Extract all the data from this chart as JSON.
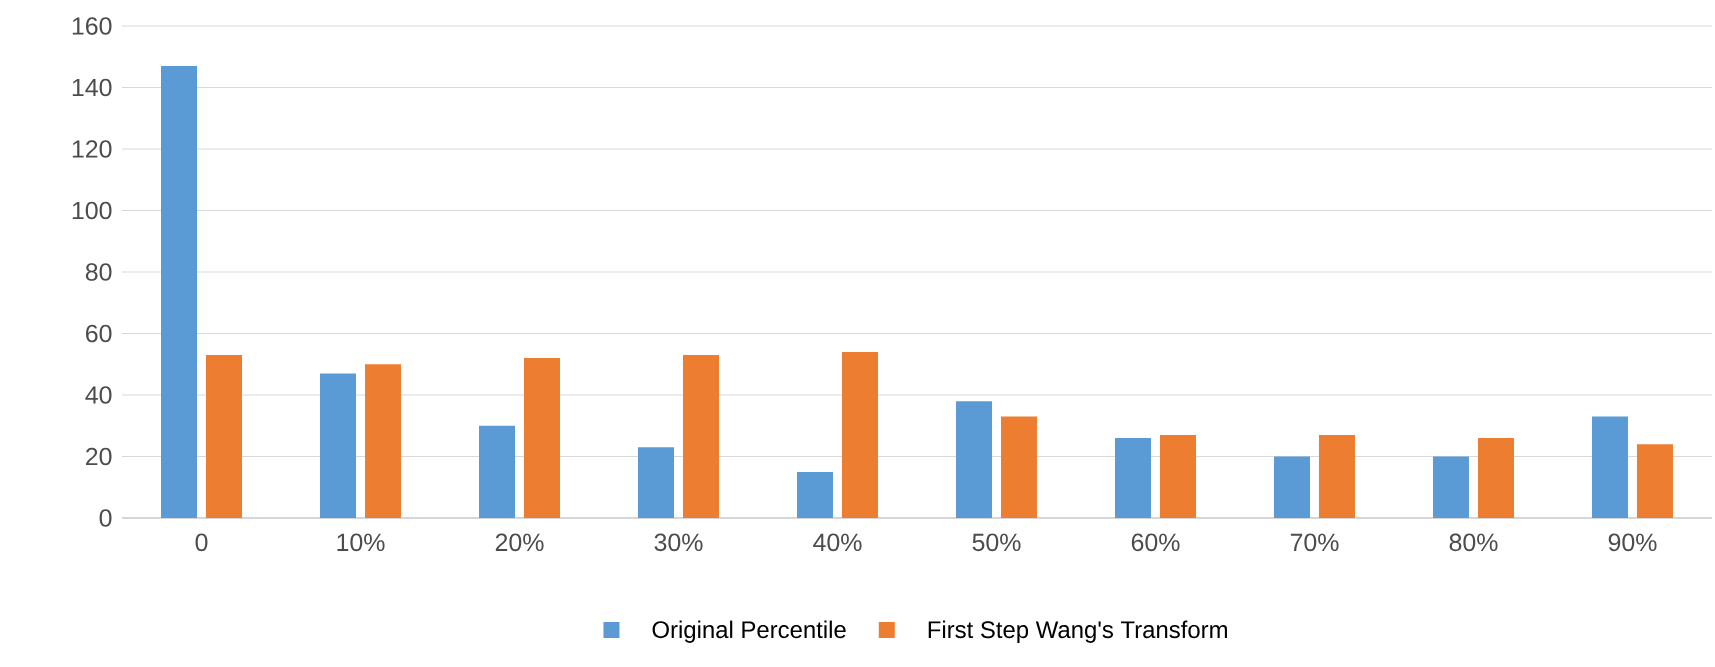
{
  "chart_data": {
    "type": "bar",
    "categories": [
      "0",
      "10%",
      "20%",
      "30%",
      "40%",
      "50%",
      "60%",
      "70%",
      "80%",
      "90%"
    ],
    "series": [
      {
        "name": "Original Percentile",
        "color": "#5b9bd5",
        "values": [
          147,
          47,
          30,
          23,
          15,
          38,
          26,
          20,
          20,
          33
        ]
      },
      {
        "name": "First Step Wang's Transform",
        "color": "#ed7d31",
        "values": [
          53,
          50,
          52,
          53,
          54,
          33,
          27,
          27,
          26,
          24
        ]
      }
    ],
    "ylim": [
      0,
      160
    ],
    "yticks": [
      0,
      20,
      40,
      60,
      80,
      100,
      120,
      140,
      160
    ],
    "grid": "y",
    "legend": "bottom"
  }
}
